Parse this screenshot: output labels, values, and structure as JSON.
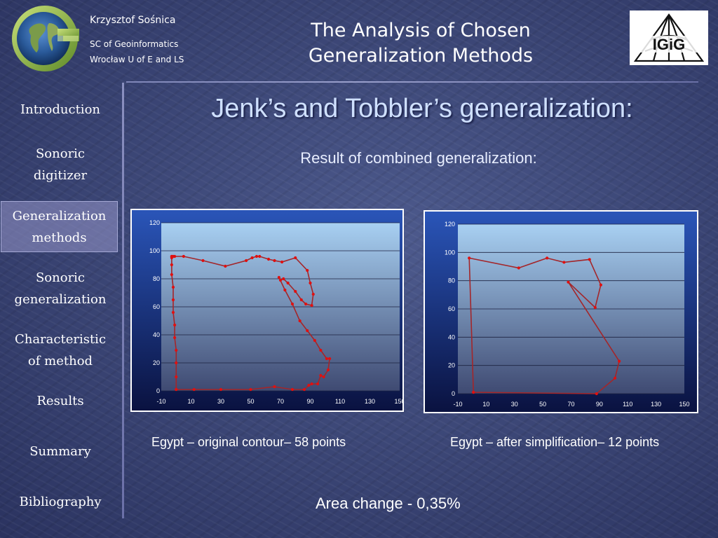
{
  "header": {
    "author_name": "Krzysztof Sośnica",
    "affiliation_line1": "SC of Geoinformatics",
    "affiliation_line2": "Wrocław U of E and LS",
    "title_line1": "The Analysis of Chosen",
    "title_line2": "Generalization Methods",
    "logo_left_icon": "globe-g-logo",
    "logo_right_icon": "igig-logo",
    "logo_right_text": "IGiG"
  },
  "sidebar": {
    "items": [
      {
        "label_lines": [
          "Introduction"
        ],
        "active": false
      },
      {
        "label_lines": [
          "Sonoric",
          "digitizer"
        ],
        "active": false
      },
      {
        "label_lines": [
          "Generalization",
          "methods"
        ],
        "active": true
      },
      {
        "label_lines": [
          "Sonoric",
          "generalization"
        ],
        "active": false
      },
      {
        "label_lines": [
          "Characteristic",
          "of method"
        ],
        "active": false
      },
      {
        "label_lines": [
          "Results"
        ],
        "active": false
      },
      {
        "label_lines": [
          "Summary"
        ],
        "active": false
      },
      {
        "label_lines": [
          "Bibliography"
        ],
        "active": false
      }
    ]
  },
  "main": {
    "title": "Jenk’s and Tobbler’s generalization:",
    "subtitle": "Result of combined generalization:",
    "caption_left": "Egypt – original contour– 58 points",
    "caption_right": "Egypt – after simplification– 12 points",
    "area_change": "Area change - 0,35%"
  },
  "colors": {
    "line": "#a3262a",
    "marker": "#e01010",
    "plot_top": "#a8d0f2",
    "plot_bottom": "#3f4a72",
    "frame_top": "#0a1240",
    "frame_mid": "#2a55b8",
    "active_nav": "#8f93c6",
    "title_text": "#cfe0ff"
  },
  "chart_data": [
    {
      "type": "scatter",
      "xlim": [
        -10,
        150
      ],
      "ylim": [
        0,
        120
      ],
      "xticks": [
        -10,
        10,
        30,
        50,
        70,
        90,
        110,
        130,
        150
      ],
      "yticks": [
        0,
        20,
        40,
        60,
        80,
        100,
        120
      ],
      "grid": true,
      "legend": "none",
      "series": [
        {
          "x": [
            0,
            0,
            0,
            0,
            -1,
            -1,
            -2,
            -2,
            -2,
            -3,
            -3,
            -3,
            -3,
            -3,
            -2,
            -1,
            5,
            18,
            33,
            47,
            51,
            54,
            56,
            62,
            66,
            71,
            80,
            88,
            90,
            92,
            91,
            87,
            84,
            80,
            75,
            72,
            70,
            69,
            73,
            78,
            83,
            88,
            93,
            97,
            101,
            103,
            102,
            99,
            97,
            95,
            91,
            89,
            86,
            78,
            66,
            50,
            30,
            12,
            0
          ],
          "y": [
            1,
            10,
            20,
            29,
            38,
            47,
            56,
            65,
            74,
            83,
            90,
            95,
            96,
            96,
            96,
            96,
            96,
            93,
            89,
            93,
            95,
            96,
            96,
            94,
            93,
            92,
            95,
            86,
            77,
            69,
            61,
            62,
            65,
            71,
            77,
            80,
            79,
            81,
            72,
            62,
            50,
            43,
            36,
            29,
            23,
            23,
            15,
            10,
            11,
            5,
            5,
            4,
            1,
            1,
            3,
            1,
            1,
            1,
            1
          ]
        }
      ]
    },
    {
      "type": "scatter",
      "xlim": [
        -10,
        150
      ],
      "ylim": [
        0,
        120
      ],
      "xticks": [
        -10,
        10,
        30,
        50,
        70,
        90,
        110,
        130,
        150
      ],
      "yticks": [
        0,
        20,
        40,
        60,
        80,
        100,
        120
      ],
      "grid": true,
      "legend": "none",
      "series": [
        {
          "x": [
            1,
            -2,
            33,
            53,
            65,
            83,
            91,
            87,
            68,
            104,
            101,
            88,
            1
          ],
          "y": [
            1,
            96,
            89,
            96,
            93,
            95,
            77,
            61,
            79,
            23,
            11,
            0,
            1
          ]
        }
      ]
    }
  ]
}
